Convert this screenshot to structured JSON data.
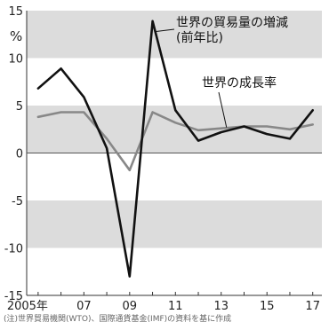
{
  "chart_data": {
    "type": "line",
    "title": "",
    "ylabel": "%",
    "xlabel": "",
    "x": [
      2005,
      2006,
      2007,
      2008,
      2009,
      2010,
      2011,
      2012,
      2013,
      2014,
      2015,
      2016,
      2017
    ],
    "xlim": [
      2004.5,
      2017.4
    ],
    "ylim": [
      -15,
      15
    ],
    "yticks": [
      15,
      10,
      5,
      0,
      -5,
      -10,
      -15
    ],
    "ytick_labels": [
      "15",
      "10",
      "5",
      "0",
      "-5",
      "-10",
      "-15"
    ],
    "xtick_labels": [
      {
        "x": 2005,
        "label": "2005年"
      },
      {
        "x": 2007,
        "label": "07"
      },
      {
        "x": 2009,
        "label": "09"
      },
      {
        "x": 2011,
        "label": "11"
      },
      {
        "x": 2013,
        "label": "13"
      },
      {
        "x": 2015,
        "label": "15"
      },
      {
        "x": 2017,
        "label": "17"
      }
    ],
    "alternating_bands": true,
    "series": [
      {
        "name": "世界の貿易量の増減(前年比)",
        "name_lines": [
          "世界の貿易量の増減",
          "(前年比)"
        ],
        "color": "#111111",
        "values": [
          6.8,
          8.9,
          5.9,
          0.5,
          -13.0,
          13.9,
          4.5,
          1.3,
          2.2,
          2.8,
          2.0,
          1.5,
          4.5
        ]
      },
      {
        "name": "世界の成長率",
        "name_lines": [
          "世界の成長率"
        ],
        "color": "#888888",
        "values": [
          3.8,
          4.3,
          4.3,
          1.5,
          -1.8,
          4.3,
          3.2,
          2.4,
          2.6,
          2.8,
          2.8,
          2.5,
          3.0
        ]
      }
    ]
  },
  "footer_note": "(注)世界貿易機関(WTO)、国際通貨基金(IMF)の資料を基に作成"
}
